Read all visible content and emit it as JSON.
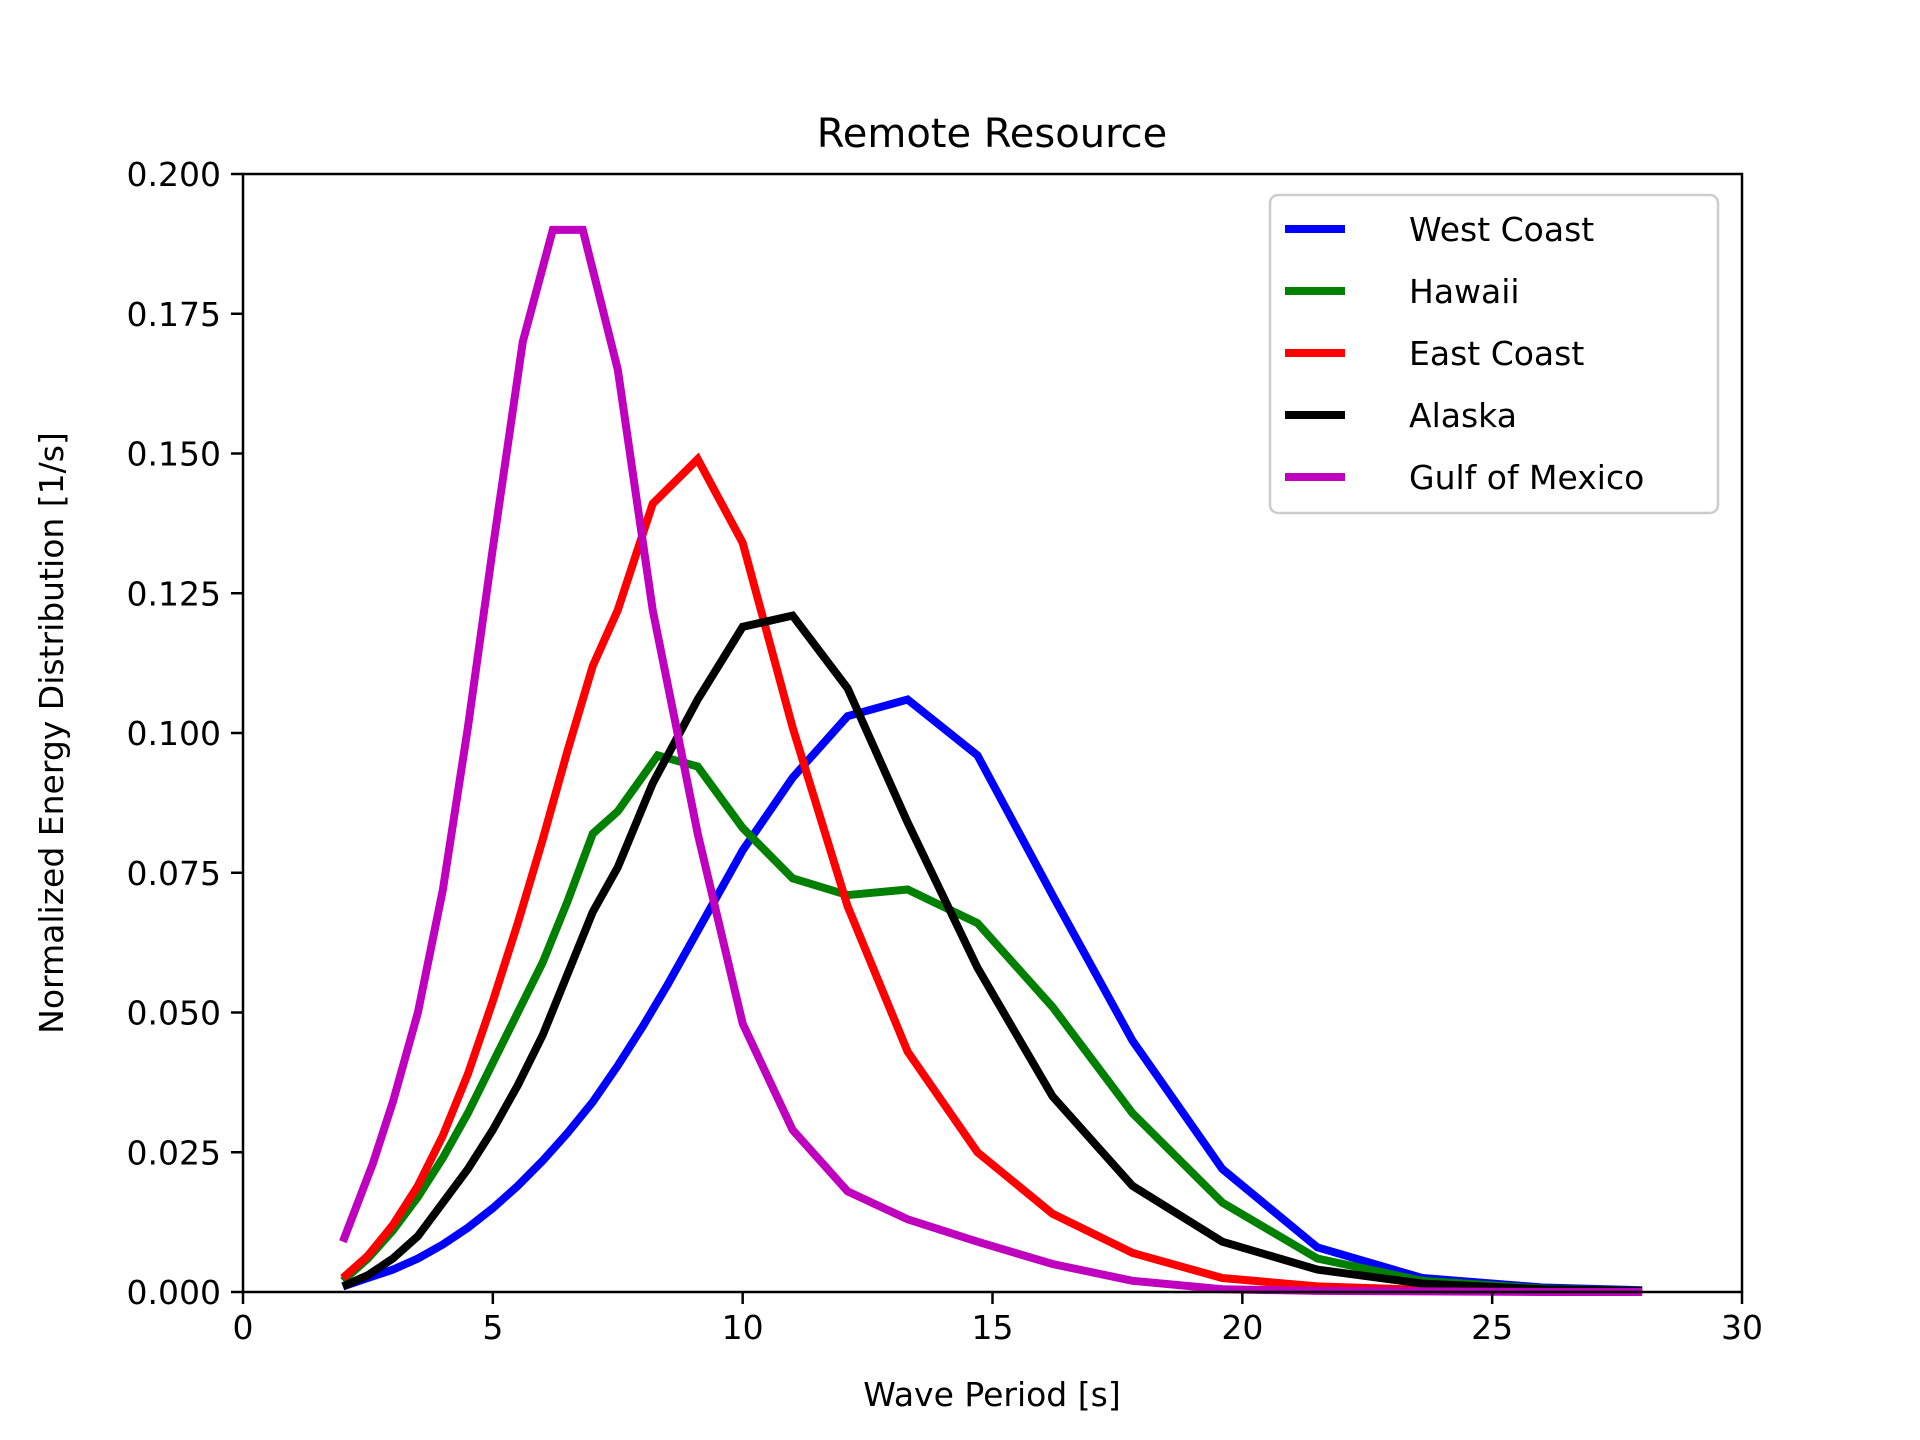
{
  "chart_data": {
    "type": "line",
    "title": "Remote Resource",
    "xlabel": "Wave Period [s]",
    "ylabel": "Normalized Energy Distribution [1/s]",
    "xlim": [
      0,
      30
    ],
    "ylim": [
      0,
      0.2
    ],
    "x_ticks": [
      "0",
      "5",
      "10",
      "15",
      "20",
      "25",
      "30"
    ],
    "y_ticks": [
      "0.000",
      "0.025",
      "0.050",
      "0.075",
      "0.100",
      "0.125",
      "0.150",
      "0.175",
      "0.200"
    ],
    "grid": false,
    "legend_position": "top-right",
    "series": [
      {
        "name": "West Coast",
        "color": "#0000ff",
        "x": [
          2,
          2.5,
          3,
          3.5,
          4,
          4.5,
          5,
          5.5,
          6,
          6.5,
          7,
          7.5,
          8,
          8.5,
          9,
          9.5,
          10,
          11,
          12.1,
          13.3,
          14.7,
          16.2,
          17.8,
          19.6,
          21.5,
          23.6,
          26,
          28
        ],
        "y": [
          0.001,
          0.0025,
          0.004,
          0.006,
          0.0085,
          0.0115,
          0.015,
          0.019,
          0.0235,
          0.0285,
          0.034,
          0.0405,
          0.0475,
          0.055,
          0.063,
          0.071,
          0.079,
          0.092,
          0.103,
          0.106,
          0.096,
          0.071,
          0.045,
          0.022,
          0.008,
          0.0025,
          0.0008,
          0.0003
        ]
      },
      {
        "name": "Hawaii",
        "color": "#008000",
        "x": [
          2,
          2.5,
          3,
          3.5,
          4,
          4.5,
          5,
          5.5,
          6,
          6.5,
          7,
          7.5,
          8.3,
          9.1,
          10,
          11,
          12.1,
          13.3,
          14.7,
          16.2,
          17.8,
          19.6,
          21.5,
          23.6,
          26,
          28
        ],
        "y": [
          0.002,
          0.006,
          0.011,
          0.017,
          0.024,
          0.032,
          0.041,
          0.05,
          0.059,
          0.07,
          0.082,
          0.086,
          0.096,
          0.094,
          0.083,
          0.074,
          0.071,
          0.072,
          0.066,
          0.051,
          0.032,
          0.016,
          0.006,
          0.002,
          0.0006,
          0.0002
        ]
      },
      {
        "name": "East Coast",
        "color": "#ff0000",
        "x": [
          2,
          2.5,
          3,
          3.5,
          4,
          4.5,
          5,
          5.5,
          6,
          6.5,
          7,
          7.5,
          8.2,
          9.1,
          10,
          11,
          12.1,
          13.3,
          14.7,
          16.2,
          17.8,
          19.6,
          21.5,
          23.6,
          26,
          28
        ],
        "y": [
          0.0025,
          0.0065,
          0.012,
          0.019,
          0.028,
          0.039,
          0.052,
          0.066,
          0.081,
          0.097,
          0.112,
          0.122,
          0.141,
          0.149,
          0.134,
          0.101,
          0.069,
          0.043,
          0.025,
          0.014,
          0.007,
          0.0025,
          0.001,
          0.0004,
          0.0001,
          0.0
        ]
      },
      {
        "name": "Alaska",
        "color": "#000000",
        "x": [
          2,
          2.5,
          3,
          3.5,
          4,
          4.5,
          5,
          5.5,
          6,
          6.5,
          7,
          7.5,
          8.2,
          9.1,
          10,
          11,
          12.1,
          13.3,
          14.7,
          16.2,
          17.8,
          19.6,
          21.5,
          23.6,
          26,
          28
        ],
        "y": [
          0.001,
          0.003,
          0.006,
          0.01,
          0.016,
          0.022,
          0.029,
          0.037,
          0.046,
          0.057,
          0.068,
          0.076,
          0.091,
          0.106,
          0.119,
          0.121,
          0.108,
          0.084,
          0.058,
          0.035,
          0.019,
          0.009,
          0.004,
          0.0015,
          0.0005,
          0.0002
        ]
      },
      {
        "name": "Gulf of Mexico",
        "color": "#bf00bf",
        "x": [
          2,
          2.3,
          2.6,
          3,
          3.5,
          4,
          4.5,
          5,
          5.6,
          6.2,
          6.8,
          7.5,
          8.2,
          9.1,
          10,
          11,
          12.1,
          13.3,
          14.7,
          16.2,
          17.8,
          19.6,
          21.5,
          23.6,
          26,
          28
        ],
        "y": [
          0.009,
          0.016,
          0.023,
          0.034,
          0.05,
          0.072,
          0.101,
          0.133,
          0.17,
          0.19,
          0.19,
          0.165,
          0.122,
          0.082,
          0.048,
          0.029,
          0.018,
          0.013,
          0.009,
          0.005,
          0.002,
          0.0005,
          0.0002,
          0.0001,
          0.0,
          0.0
        ]
      }
    ]
  }
}
